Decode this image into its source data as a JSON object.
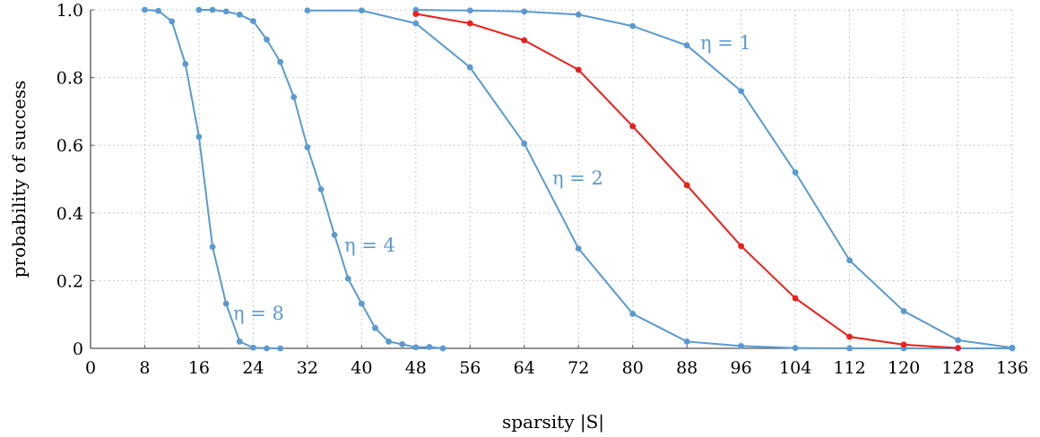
{
  "chart_data": {
    "type": "line",
    "xlabel": "sparsity |S|",
    "ylabel": "probability of success",
    "xlim": [
      0,
      136
    ],
    "ylim": [
      0,
      1.0
    ],
    "xticks": [
      0,
      8,
      16,
      24,
      32,
      40,
      48,
      56,
      64,
      72,
      80,
      88,
      96,
      104,
      112,
      120,
      128,
      136
    ],
    "yticks": [
      0,
      0.2,
      0.4,
      0.6,
      0.8,
      1.0
    ],
    "xtick_labels": [
      "0",
      "8",
      "16",
      "24",
      "32",
      "40",
      "48",
      "56",
      "64",
      "72",
      "80",
      "88",
      "96",
      "104",
      "112",
      "120",
      "128",
      "136"
    ],
    "ytick_labels": [
      "0",
      "0.2",
      "0.4",
      "0.6",
      "0.8",
      "1.0"
    ],
    "grid": true,
    "colors": {
      "blue": "#5a9ad0",
      "red": "#e8201a",
      "axis": "#555555"
    },
    "series": [
      {
        "name": "η = 8",
        "color": "#5a9ad0",
        "points": [
          [
            8,
            1.0
          ],
          [
            10,
            0.997
          ],
          [
            12,
            0.966
          ],
          [
            14,
            0.84
          ],
          [
            16,
            0.625
          ],
          [
            18,
            0.3
          ],
          [
            20,
            0.132
          ],
          [
            22,
            0.02
          ],
          [
            24,
            0.002
          ],
          [
            26,
            0.0
          ],
          [
            28,
            0.0
          ]
        ]
      },
      {
        "name": "η = 4",
        "color": "#5a9ad0",
        "points": [
          [
            16,
            1.0
          ],
          [
            18,
            1.0
          ],
          [
            20,
            0.995
          ],
          [
            22,
            0.986
          ],
          [
            24,
            0.967
          ],
          [
            26,
            0.912
          ],
          [
            28,
            0.846
          ],
          [
            30,
            0.742
          ],
          [
            32,
            0.594
          ],
          [
            34,
            0.47
          ],
          [
            36,
            0.335
          ],
          [
            38,
            0.206
          ],
          [
            40,
            0.132
          ],
          [
            42,
            0.06
          ],
          [
            44,
            0.02
          ],
          [
            46,
            0.012
          ],
          [
            48,
            0.003
          ],
          [
            50,
            0.004
          ],
          [
            52,
            0.0
          ]
        ]
      },
      {
        "name": "η = 2",
        "color": "#5a9ad0",
        "points": [
          [
            32,
            0.998
          ],
          [
            40,
            0.998
          ],
          [
            48,
            0.96
          ],
          [
            56,
            0.83
          ],
          [
            64,
            0.605
          ],
          [
            72,
            0.295
          ],
          [
            80,
            0.102
          ],
          [
            88,
            0.02
          ],
          [
            96,
            0.007
          ],
          [
            104,
            0.001
          ],
          [
            112,
            0.0
          ],
          [
            120,
            0.0
          ],
          [
            128,
            0.0
          ],
          [
            136,
            0.0
          ]
        ]
      },
      {
        "name": "η = 1",
        "color": "#5a9ad0",
        "points": [
          [
            48,
            1.0
          ],
          [
            56,
            0.998
          ],
          [
            64,
            0.995
          ],
          [
            72,
            0.986
          ],
          [
            80,
            0.952
          ],
          [
            88,
            0.895
          ],
          [
            96,
            0.76
          ],
          [
            104,
            0.52
          ],
          [
            112,
            0.26
          ],
          [
            120,
            0.11
          ],
          [
            128,
            0.024
          ],
          [
            136,
            0.002
          ]
        ]
      },
      {
        "name": "",
        "color": "#e8201a",
        "points": [
          [
            48,
            0.988
          ],
          [
            56,
            0.96
          ],
          [
            64,
            0.91
          ],
          [
            72,
            0.823
          ],
          [
            80,
            0.656
          ],
          [
            88,
            0.482
          ],
          [
            96,
            0.302
          ],
          [
            104,
            0.148
          ],
          [
            112,
            0.034
          ],
          [
            120,
            0.011
          ],
          [
            128,
            0.001
          ]
        ]
      }
    ]
  }
}
